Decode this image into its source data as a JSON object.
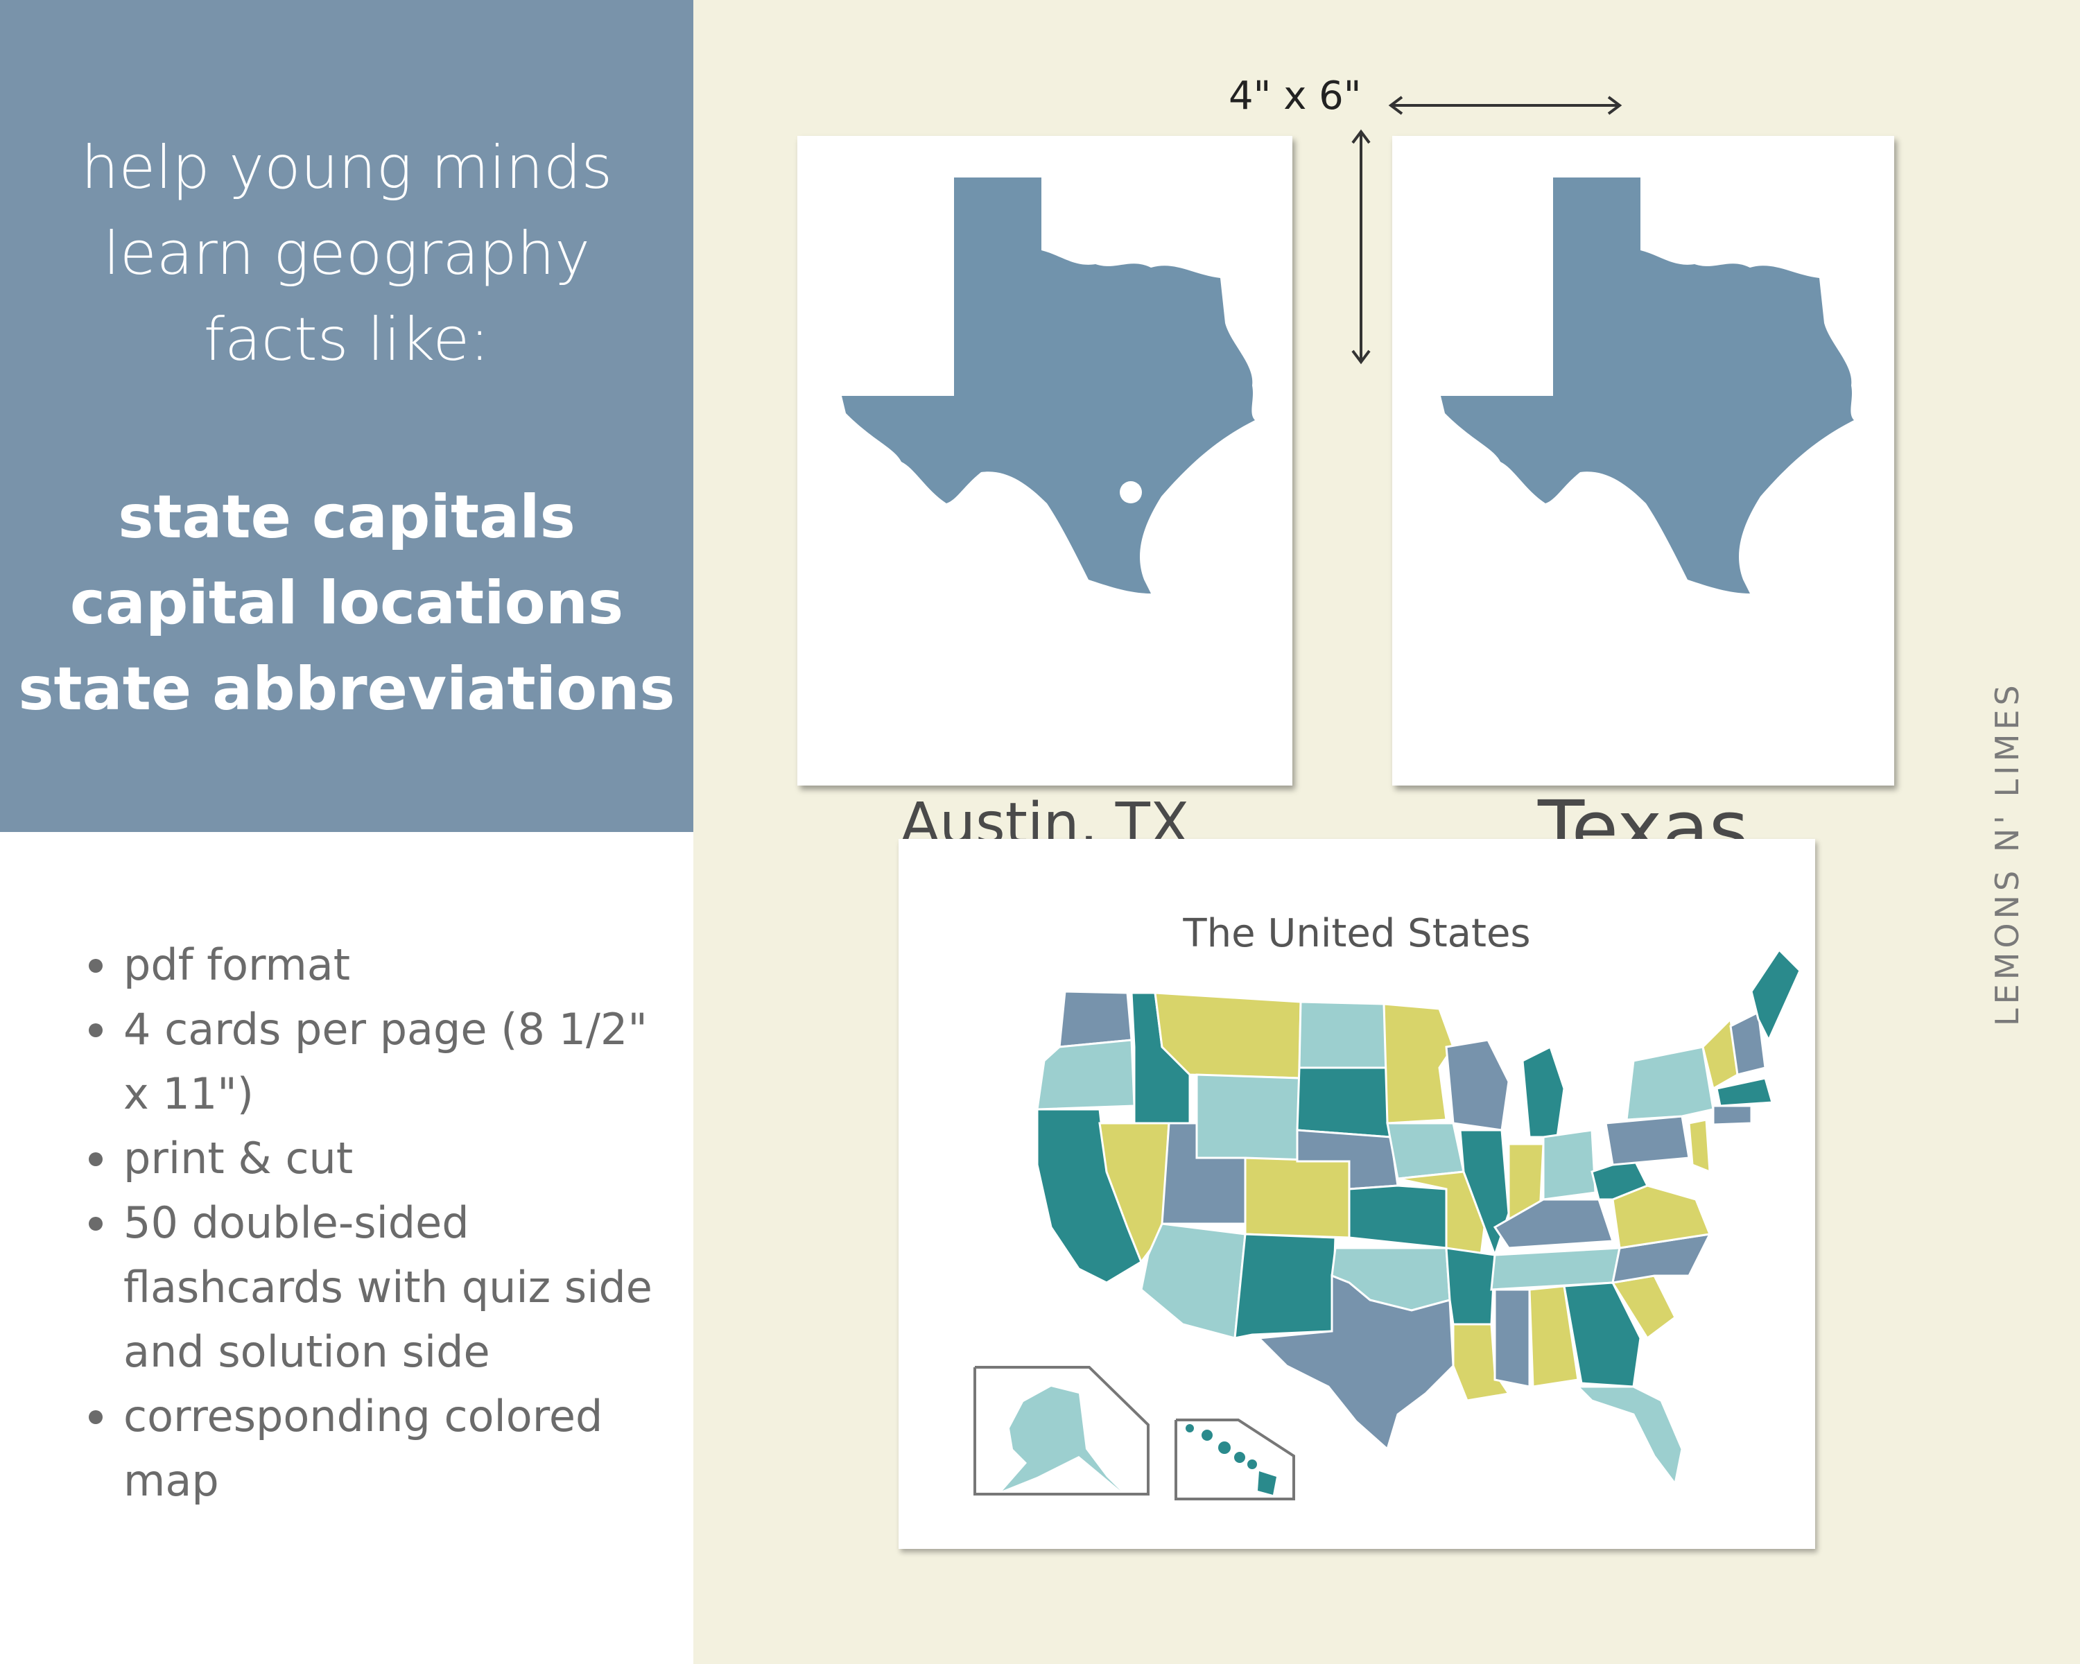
{
  "intro": {
    "line1": "help young minds",
    "line2": "learn geography",
    "line3": "facts like:"
  },
  "topics": [
    "state capitals",
    "capital locations",
    "state abbreviations"
  ],
  "features": [
    {
      "text": "pdf format"
    },
    {
      "text": "4 cards per page (8 1/2\" x 11\")"
    },
    {
      "text": "print & cut"
    },
    {
      "text": "50 double-sided flashcards with quiz side and solution side"
    },
    {
      "text": "corresponding colored map"
    }
  ],
  "dimension_label": "4\" x 6\"",
  "cards": {
    "capital_label": "Austin, TX",
    "state_label": "Texas",
    "state_color": "#7193ac"
  },
  "map": {
    "title": "The United States",
    "colors": {
      "teal": "#2a8a8c",
      "light_teal": "#9ccfcf",
      "slate": "#7793ac",
      "yellow": "#d8d46a"
    }
  },
  "brand": "LEMONS N' LIMES",
  "colors": {
    "panel_blue": "#7993aa",
    "background": "#f3f1df"
  }
}
